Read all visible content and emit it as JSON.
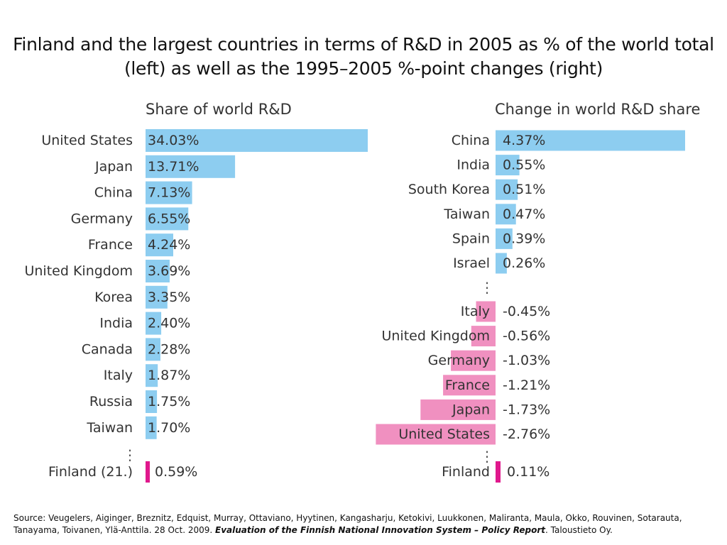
{
  "title": "Finland and the largest countries in terms of R&D in 2005 as % of the world total (left) as well as the 1995–2005 %-point changes (right)",
  "colors": {
    "positive": "#8dcdf0",
    "negative": "#f090c0",
    "finland": "#e0188c",
    "text": "#333333"
  },
  "chart_data": [
    {
      "type": "bar",
      "orientation": "horizontal",
      "title": "Share of world R&D",
      "categories": [
        "United States",
        "Japan",
        "China",
        "Germany",
        "France",
        "United Kingdom",
        "Korea",
        "India",
        "Canada",
        "Italy",
        "Russia",
        "Taiwan"
      ],
      "values": [
        34.03,
        13.71,
        7.13,
        6.55,
        4.24,
        3.69,
        3.35,
        2.4,
        2.28,
        1.87,
        1.75,
        1.7
      ],
      "labels": [
        "34.03%",
        "13.71%",
        "7.13%",
        "6.55%",
        "4.24%",
        "3.69%",
        "3.35%",
        "2.40%",
        "2.28%",
        "1.87%",
        "1.75%",
        "1.70%"
      ],
      "ellipsis": "⋮",
      "highlight": {
        "category": "Finland (21.)",
        "value": 0.59,
        "label": "0.59%"
      }
    },
    {
      "type": "bar",
      "orientation": "horizontal",
      "title": "Change in world R&D share",
      "top_group": {
        "categories": [
          "China",
          "India",
          "South Korea",
          "Taiwan",
          "Spain",
          "Israel"
        ],
        "values": [
          4.37,
          0.55,
          0.51,
          0.47,
          0.39,
          0.26
        ],
        "labels": [
          "4.37%",
          "0.55%",
          "0.51%",
          "0.47%",
          "0.39%",
          "0.26%"
        ]
      },
      "ellipsis": "⋮",
      "bottom_group": {
        "categories": [
          "Italy",
          "United Kingdom",
          "Germany",
          "France",
          "Japan",
          "United States"
        ],
        "values": [
          -0.45,
          -0.56,
          -1.03,
          -1.21,
          -1.73,
          -2.76
        ],
        "labels": [
          "-0.45%",
          "-0.56%",
          "-1.03%",
          "-1.21%",
          "-1.73%",
          "-2.76%"
        ]
      },
      "highlight": {
        "category": "Finland",
        "value": 0.11,
        "label": "0.11%"
      }
    }
  ],
  "source": {
    "prefix": "Source: Veugelers, Aiginger, Breznitz, Edquist, Murray, Ottaviano, Hyytinen, Kangasharju, Ketokivi, Luukkonen, Maliranta, Maula, Okko, Rouvinen, Sotarauta, Tanayama, Toivanen, Ylä-Anttila. 28 Oct. 2009. ",
    "report": "Evaluation of the Finnish National Innovation System – Policy Report",
    "suffix": ". Taloustieto Oy."
  }
}
